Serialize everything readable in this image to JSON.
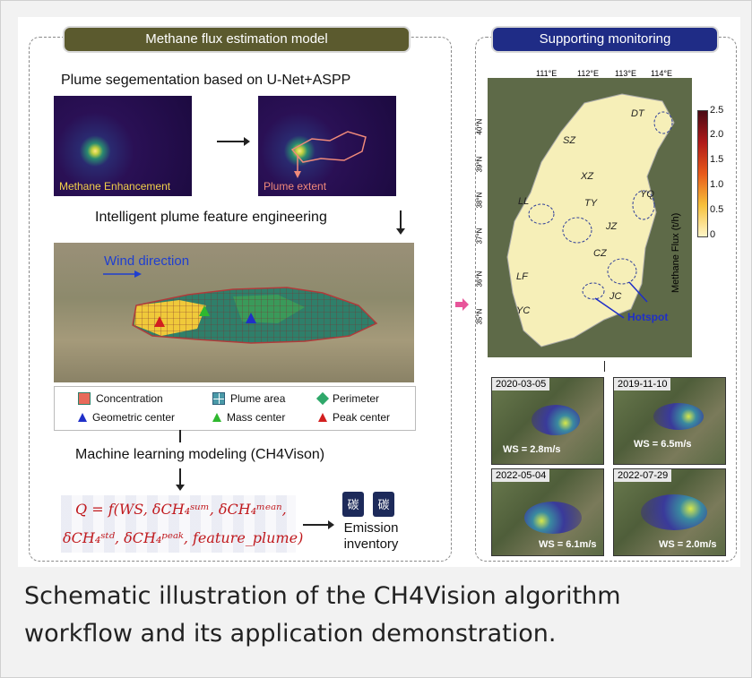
{
  "left_panel": {
    "title": "Methane flux estimation model",
    "step1_label": "Plume segementation based on U-Net+ASPP",
    "img1_label": "Methane Enhancement",
    "img2_label": "Plume extent",
    "step2_label": "Intelligent plume feature engineering",
    "wind_label": "Wind direction",
    "legend": {
      "concentration": "Concentration",
      "plume_area": "Plume area",
      "perimeter": "Perimeter",
      "geometric_center": "Geometric center",
      "mass_center": "Mass center",
      "peak_center": "Peak center"
    },
    "step3_label": "Machine learning modeling (CH4Vison)",
    "formula_line1": "Q = f(WS, δCH₄ˢᵘᵐ, δCH₄ᵐᵉᵃⁿ,",
    "formula_line2": "δCH₄ˢᵗᵈ, δCH₄ᵖᵉᵃᵏ, feature_plume)",
    "icon_char": "碳",
    "inventory_line1": "Emission",
    "inventory_line2": "inventory"
  },
  "right_panel": {
    "title": "Supporting monitoring",
    "lon_ticks": [
      "111°E",
      "112°E",
      "113°E",
      "114°E"
    ],
    "lat_ticks": [
      "40°N",
      "39°N",
      "38°N",
      "37°N",
      "36°N",
      "35°N"
    ],
    "cities": [
      "DT",
      "SZ",
      "XZ",
      "TY",
      "YQ",
      "LL",
      "JZ",
      "CZ",
      "LF",
      "JC",
      "YC"
    ],
    "hotspot_label": "Hotspot",
    "colorbar_label": "Methane Flux (t/h)",
    "colorbar_ticks": [
      "2.5",
      "2.0",
      "1.5",
      "1.0",
      "0.5",
      "0"
    ],
    "cases": [
      {
        "date": "2020-03-05",
        "ws": "WS = 2.8m/s"
      },
      {
        "date": "2019-11-10",
        "ws": "WS = 6.5m/s"
      },
      {
        "date": "2022-05-04",
        "ws": "WS = 6.1m/s"
      },
      {
        "date": "2022-07-29",
        "ws": "WS = 2.0m/s"
      }
    ]
  },
  "caption": "Schematic illustration of the CH4Vision algorithm workflow and its application demonstration.",
  "colors": {
    "left_title_bg": "#5b5a2e",
    "right_title_bg": "#1f2c86",
    "formula_red": "#c0191d",
    "pink_arrow": "#e8559a"
  }
}
